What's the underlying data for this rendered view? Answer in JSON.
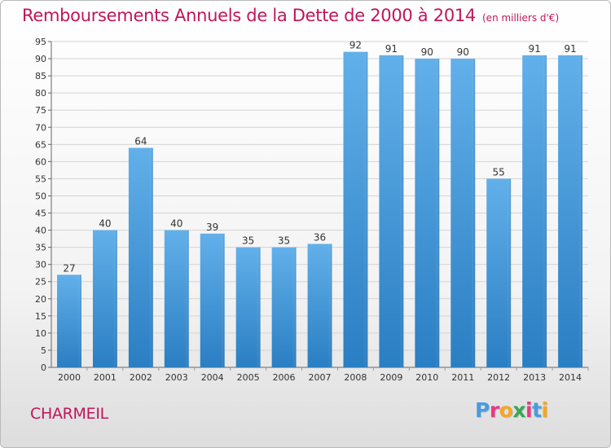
{
  "title": "Remboursements Annuels de la Dette de 2000 à 2014",
  "unit_note": "(en milliers d'€)",
  "commune": "CHARMEIL",
  "brand": {
    "letters": [
      "P",
      "r",
      "o",
      "x",
      "i",
      "t",
      "i"
    ],
    "colors": [
      "#4a9be0",
      "#e83a84",
      "#f6a623",
      "#3aa655",
      "#e83a84",
      "#4a9be0",
      "#f6a623"
    ]
  },
  "colors": {
    "title": "#c0155b",
    "bar": "#5aa9e6",
    "bar_dark": "#2b7fc4"
  },
  "chart_data": {
    "type": "bar",
    "title": "Remboursements Annuels de la Dette de 2000 à 2014",
    "xlabel": "",
    "ylabel": "",
    "categories": [
      "2000",
      "2001",
      "2002",
      "2003",
      "2004",
      "2005",
      "2006",
      "2007",
      "2008",
      "2009",
      "2010",
      "2011",
      "2012",
      "2013",
      "2014"
    ],
    "values": [
      27,
      40,
      64,
      40,
      39,
      35,
      35,
      36,
      92,
      91,
      90,
      90,
      55,
      91,
      91
    ],
    "ylim": [
      0,
      95
    ],
    "yticks": [
      0,
      5,
      10,
      15,
      20,
      25,
      30,
      35,
      40,
      45,
      50,
      55,
      60,
      65,
      70,
      75,
      80,
      85,
      90,
      95
    ],
    "grid": true,
    "legend": "none"
  }
}
